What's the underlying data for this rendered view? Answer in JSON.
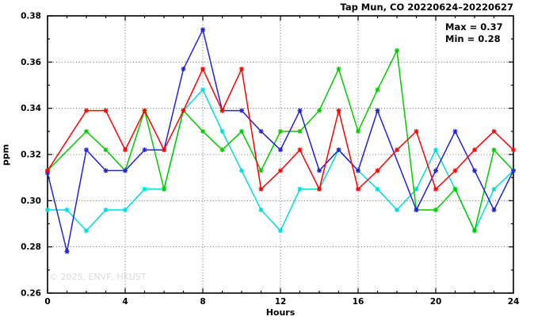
{
  "header": {
    "title": "Tap Mun, CO 20220624–20220627"
  },
  "annotations": {
    "max_label": "Max = 0.37",
    "min_label": "Min = 0.28",
    "watermark": "© 2025, ENVF, HKUST"
  },
  "chart_data": {
    "type": "line",
    "title": "Tap Mun, CO 20220624–20220627",
    "xlabel": "Hours",
    "ylabel": "ppm",
    "xlim": [
      0,
      24
    ],
    "ylim": [
      0.26,
      0.38
    ],
    "x_tick_labels": [
      "0",
      "4",
      "8",
      "12",
      "16",
      "20",
      "24"
    ],
    "x_tick_values": [
      0,
      4,
      8,
      12,
      16,
      20,
      24
    ],
    "x_minor_step": 1,
    "y_tick_labels": [
      "0.26",
      "0.28",
      "0.30",
      "0.32",
      "0.34",
      "0.36",
      "0.38"
    ],
    "y_tick_values": [
      0.26,
      0.28,
      0.3,
      0.32,
      0.34,
      0.36,
      0.38
    ],
    "y_minor_step": 0.01,
    "grid": true,
    "legend": "none",
    "marker": "asterisk",
    "series": [
      {
        "name": "series-cyan",
        "color": "#00dcdc",
        "points": [
          [
            0,
            0.296
          ],
          [
            1,
            0.296
          ],
          [
            2,
            0.287
          ],
          [
            3,
            0.296
          ],
          [
            4,
            0.296
          ],
          [
            5,
            0.305
          ],
          [
            6,
            0.305
          ],
          [
            7,
            0.339
          ],
          [
            8,
            0.348
          ],
          [
            9,
            0.33
          ],
          [
            10,
            0.313
          ],
          [
            11,
            0.296
          ],
          [
            12,
            0.287
          ],
          [
            13,
            0.305
          ],
          [
            14,
            0.305
          ],
          [
            15,
            0.322
          ],
          [
            16,
            0.313
          ],
          [
            17,
            0.305
          ],
          [
            18,
            0.296
          ],
          [
            19,
            0.305
          ],
          [
            20,
            0.322
          ],
          [
            21,
            0.305
          ],
          [
            22,
            0.287
          ],
          [
            23,
            0.305
          ],
          [
            24,
            0.313
          ]
        ]
      },
      {
        "name": "series-green",
        "color": "#00cc00",
        "points": [
          [
            0,
            0.313
          ],
          [
            2,
            0.33
          ],
          [
            3,
            0.322
          ],
          [
            4,
            0.313
          ],
          [
            5,
            0.339
          ],
          [
            6,
            0.305
          ],
          [
            7,
            0.339
          ],
          [
            8,
            0.33
          ],
          [
            9,
            0.322
          ],
          [
            10,
            0.33
          ],
          [
            11,
            0.313
          ],
          [
            12,
            0.33
          ],
          [
            13,
            0.33
          ],
          [
            14,
            0.339
          ],
          [
            15,
            0.357
          ],
          [
            16,
            0.33
          ],
          [
            17,
            0.348
          ],
          [
            18,
            0.365
          ],
          [
            19,
            0.296
          ],
          [
            20,
            0.296
          ],
          [
            21,
            0.305
          ],
          [
            22,
            0.287
          ],
          [
            23,
            0.322
          ],
          [
            24,
            0.313
          ]
        ]
      },
      {
        "name": "series-blue",
        "color": "#2222dd",
        "points": [
          [
            0,
            0.312
          ],
          [
            1,
            0.278
          ],
          [
            2,
            0.322
          ],
          [
            3,
            0.313
          ],
          [
            4,
            0.313
          ],
          [
            5,
            0.322
          ],
          [
            6,
            0.322
          ],
          [
            7,
            0.357
          ],
          [
            8,
            0.374
          ],
          [
            9,
            0.339
          ],
          [
            10,
            0.339
          ],
          [
            11,
            0.33
          ],
          [
            12,
            0.322
          ],
          [
            13,
            0.339
          ],
          [
            14,
            0.313
          ],
          [
            15,
            0.322
          ],
          [
            16,
            0.313
          ],
          [
            17,
            0.339
          ],
          [
            19,
            0.296
          ],
          [
            20,
            0.313
          ],
          [
            21,
            0.33
          ],
          [
            22,
            0.313
          ],
          [
            23,
            0.296
          ],
          [
            24,
            0.313
          ]
        ]
      },
      {
        "name": "series-red",
        "color": "#ff0000",
        "points": [
          [
            0,
            0.313
          ],
          [
            2,
            0.339
          ],
          [
            3,
            0.339
          ],
          [
            4,
            0.322
          ],
          [
            5,
            0.339
          ],
          [
            6,
            0.322
          ],
          [
            7,
            0.339
          ],
          [
            8,
            0.357
          ],
          [
            9,
            0.339
          ],
          [
            10,
            0.357
          ],
          [
            11,
            0.305
          ],
          [
            12,
            0.313
          ],
          [
            13,
            0.322
          ],
          [
            14,
            0.305
          ],
          [
            15,
            0.339
          ],
          [
            16,
            0.305
          ],
          [
            17,
            0.313
          ],
          [
            18,
            0.322
          ],
          [
            19,
            0.33
          ],
          [
            20,
            0.305
          ],
          [
            21,
            0.313
          ],
          [
            22,
            0.322
          ],
          [
            23,
            0.33
          ],
          [
            24,
            0.322
          ]
        ]
      }
    ]
  }
}
